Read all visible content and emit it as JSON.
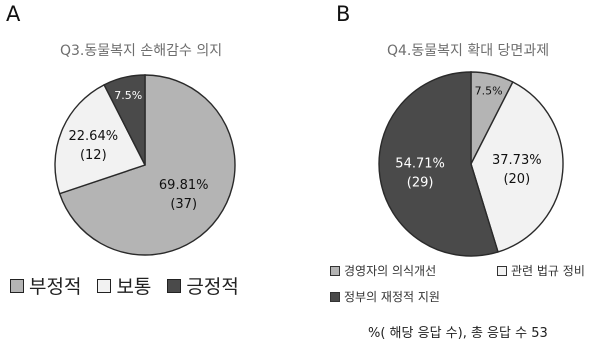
{
  "panels": [
    {
      "letter": "A",
      "chart_data": {
        "type": "pie",
        "title": "Q3.동물복지 손해감수 의지",
        "categories": [
          "부정적",
          "보통",
          "긍정적"
        ],
        "values": [
          69.81,
          22.64,
          7.5
        ],
        "counts": [
          37,
          12,
          null
        ],
        "value_labels": [
          "69.81%",
          "22.64%",
          "7.5%"
        ],
        "count_labels": [
          "(37)",
          "(12)",
          ""
        ],
        "colors": [
          "#b4b4b4",
          "#f2f2f2",
          "#4a4a4a"
        ],
        "legend": [
          "부정적",
          "보통",
          "긍정적"
        ],
        "legend_position": "bottom"
      }
    },
    {
      "letter": "B",
      "chart_data": {
        "type": "pie",
        "title": "Q4.동물복지 확대 당면과제",
        "categories": [
          "경영자의 의식개선",
          "관련 법규 정비",
          "정부의 재정적 지원"
        ],
        "values": [
          7.5,
          37.73,
          54.71
        ],
        "counts": [
          null,
          20,
          29
        ],
        "value_labels": [
          "7.5%",
          "37.73%",
          "54.71%"
        ],
        "count_labels": [
          "",
          "(20)",
          "(29)"
        ],
        "colors": [
          "#b4b4b4",
          "#f2f2f2",
          "#4a4a4a"
        ],
        "legend": [
          "경영자의 의식개선",
          "관련 법규 정비",
          "정부의 재정적 지원"
        ],
        "legend_position": "bottom"
      }
    }
  ],
  "footnote": "%( 해당 응답 수), 총 응답 수 53"
}
